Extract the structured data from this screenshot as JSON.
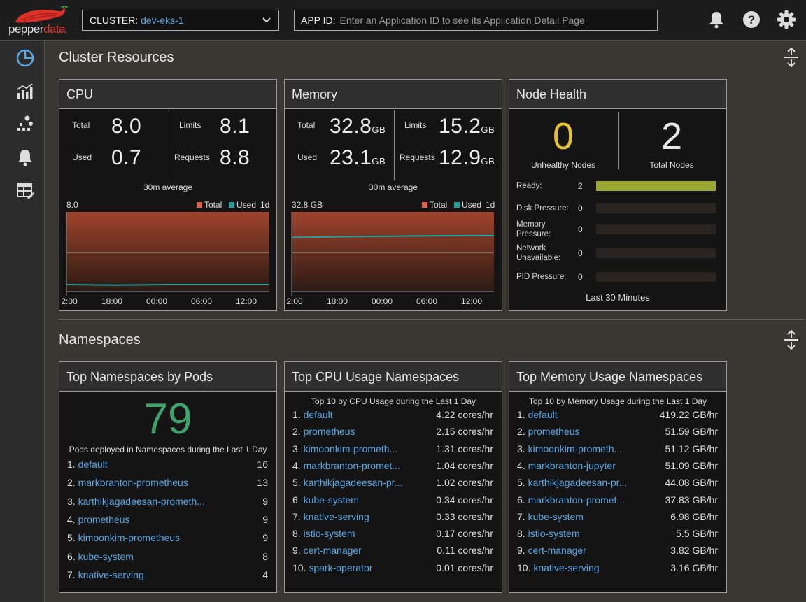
{
  "brand": {
    "name_a": "pepper",
    "name_b": "data"
  },
  "header": {
    "cluster_label": "CLUSTER:",
    "cluster_value": "dev-eks-1",
    "appid_label": "APP ID:",
    "appid_placeholder": "Enter an Application ID to see its Application Detail Page"
  },
  "sections": {
    "cluster": "Cluster Resources",
    "namespaces": "Namespaces"
  },
  "cpu": {
    "title": "CPU",
    "total_label": "Total",
    "total": "8.0",
    "used_label": "Used",
    "used": "0.7",
    "limits_label": "Limits",
    "limits": "8.1",
    "requests_label": "Requests",
    "requests": "8.8",
    "avg_label": "30m average",
    "chart_max": "8.0",
    "legend_total": "Total",
    "legend_used": "Used",
    "legend_range": "1d",
    "x_ticks": [
      "2:00",
      "18:00",
      "00:00",
      "06:00",
      "12:00"
    ]
  },
  "memory": {
    "title": "Memory",
    "total_label": "Total",
    "total": "32.8",
    "total_unit": "GB",
    "used_label": "Used",
    "used": "23.1",
    "used_unit": "GB",
    "limits_label": "Limits",
    "limits": "15.2",
    "limits_unit": "GB",
    "requests_label": "Requests",
    "requests": "12.9",
    "requests_unit": "GB",
    "avg_label": "30m average",
    "chart_max": "32.8 GB",
    "legend_total": "Total",
    "legend_used": "Used",
    "legend_range": "1d",
    "x_ticks": [
      "2:00",
      "18:00",
      "00:00",
      "06:00",
      "12:00"
    ]
  },
  "chart_data": [
    {
      "type": "area",
      "title": "CPU",
      "x": [
        "2:00",
        "18:00",
        "00:00",
        "06:00",
        "12:00"
      ],
      "ylim": [
        0,
        8.0
      ],
      "series": [
        {
          "name": "Total",
          "values": [
            8.0,
            8.0,
            8.0,
            8.0,
            8.0
          ]
        },
        {
          "name": "Used",
          "values": [
            0.7,
            0.65,
            0.7,
            0.7,
            0.7
          ]
        }
      ]
    },
    {
      "type": "area",
      "title": "Memory",
      "x": [
        "2:00",
        "18:00",
        "00:00",
        "06:00",
        "12:00"
      ],
      "ylim": [
        0,
        32.8
      ],
      "series": [
        {
          "name": "Total",
          "values": [
            32.8,
            32.8,
            32.8,
            32.8,
            32.8
          ]
        },
        {
          "name": "Used",
          "values": [
            22.3,
            22.6,
            22.8,
            23.0,
            23.1
          ]
        }
      ]
    }
  ],
  "node_health": {
    "title": "Node Health",
    "unhealthy": "0",
    "unhealthy_label": "Unhealthy Nodes",
    "total": "2",
    "total_label": "Total Nodes",
    "rows": [
      {
        "label": "Ready:",
        "value": "2",
        "fraction": 1.0
      },
      {
        "label": "Disk Pressure:",
        "value": "0",
        "fraction": 0
      },
      {
        "label": "Memory Pressure:",
        "value": "0",
        "fraction": 0
      },
      {
        "label": "Network Unavailable:",
        "value": "0",
        "fraction": 0
      },
      {
        "label": "PID Pressure:",
        "value": "0",
        "fraction": 0
      }
    ],
    "footer": "Last 30 Minutes"
  },
  "pods": {
    "title": "Top Namespaces by Pods",
    "count": "79",
    "subtitle": "Pods deployed in Namespaces during the Last 1 Day",
    "items": [
      {
        "rank": "1.",
        "name": "default",
        "value": "16"
      },
      {
        "rank": "2.",
        "name": "markbranton-prometheus",
        "value": "13"
      },
      {
        "rank": "3.",
        "name": "karthikjagadeesan-prometh...",
        "value": "9"
      },
      {
        "rank": "4.",
        "name": "prometheus",
        "value": "9"
      },
      {
        "rank": "5.",
        "name": "kimoonkim-prometheus",
        "value": "9"
      },
      {
        "rank": "6.",
        "name": "kube-system",
        "value": "8"
      },
      {
        "rank": "7.",
        "name": "knative-serving",
        "value": "4"
      }
    ]
  },
  "cpu_ns": {
    "title": "Top CPU Usage Namespaces",
    "subtitle": "Top 10 by CPU Usage during the Last 1 Day",
    "items": [
      {
        "rank": "1.",
        "name": "default",
        "value": "4.22 cores/hr"
      },
      {
        "rank": "2.",
        "name": "prometheus",
        "value": "2.15 cores/hr"
      },
      {
        "rank": "3.",
        "name": "kimoonkim-prometh...",
        "value": "1.31 cores/hr"
      },
      {
        "rank": "4.",
        "name": "markbranton-promet...",
        "value": "1.04 cores/hr"
      },
      {
        "rank": "5.",
        "name": "karthikjagadeesan-pr...",
        "value": "1.02 cores/hr"
      },
      {
        "rank": "6.",
        "name": "kube-system",
        "value": "0.34 cores/hr"
      },
      {
        "rank": "7.",
        "name": "knative-serving",
        "value": "0.33 cores/hr"
      },
      {
        "rank": "8.",
        "name": "istio-system",
        "value": "0.17 cores/hr"
      },
      {
        "rank": "9.",
        "name": "cert-manager",
        "value": "0.11 cores/hr"
      },
      {
        "rank": "10.",
        "name": "spark-operator",
        "value": "0.01 cores/hr"
      }
    ]
  },
  "mem_ns": {
    "title": "Top Memory Usage Namespaces",
    "subtitle": "Top 10 by Memory Usage during the Last 1 Day",
    "items": [
      {
        "rank": "1.",
        "name": "default",
        "value": "419.22 GB/hr"
      },
      {
        "rank": "2.",
        "name": "prometheus",
        "value": "51.59 GB/hr"
      },
      {
        "rank": "3.",
        "name": "kimoonkim-prometh...",
        "value": "51.12 GB/hr"
      },
      {
        "rank": "4.",
        "name": "markbranton-jupyter",
        "value": "51.09 GB/hr"
      },
      {
        "rank": "5.",
        "name": "karthikjagadeesan-pr...",
        "value": "44.08 GB/hr"
      },
      {
        "rank": "6.",
        "name": "markbranton-promet...",
        "value": "37.83 GB/hr"
      },
      {
        "rank": "7.",
        "name": "kube-system",
        "value": "6.98 GB/hr"
      },
      {
        "rank": "8.",
        "name": "istio-system",
        "value": "5.5 GB/hr"
      },
      {
        "rank": "9.",
        "name": "cert-manager",
        "value": "3.82 GB/hr"
      },
      {
        "rank": "10.",
        "name": "knative-serving",
        "value": "3.16 GB/hr"
      }
    ]
  },
  "colors": {
    "accent": "#5aa7e6",
    "total": "#e0654a",
    "used": "#1fa3a0",
    "warn": "#e6c22e",
    "ok": "#3ea36a",
    "ready": "#9aa832"
  }
}
